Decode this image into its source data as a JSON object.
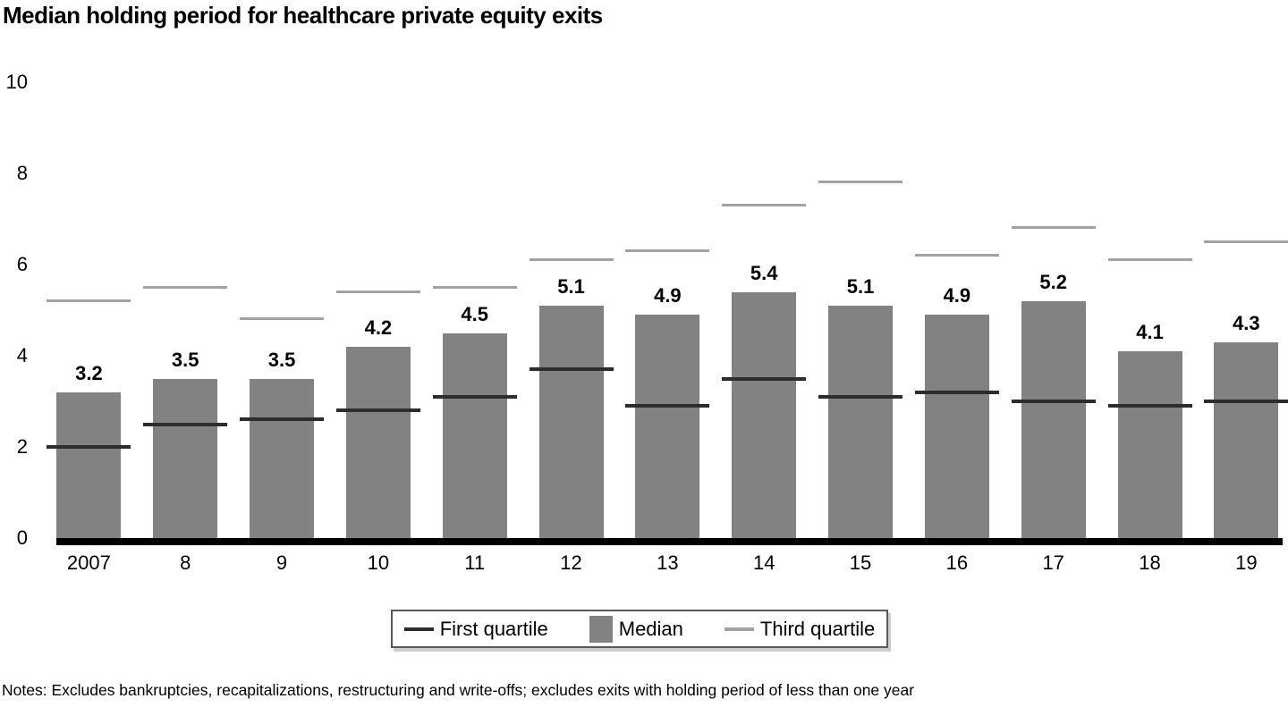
{
  "title": "Median holding period for healthcare private equity exits",
  "notes": "Notes: Excludes bankruptcies, recapitalizations, restructuring and write-offs; excludes exits with holding period of less than one year",
  "legend": {
    "items": [
      {
        "label": "First quartile",
        "swatch": "dark-line"
      },
      {
        "label": "Median",
        "swatch": "gray-rect"
      },
      {
        "label": "Third quartile",
        "swatch": "light-line"
      }
    ]
  },
  "colors": {
    "median_bar": "#828282",
    "first_quartile_line": "#2d2d2d",
    "third_quartile_line": "#a3a3a3",
    "axis": "#000000",
    "text": "#000000"
  },
  "chart_data": {
    "type": "bar",
    "title": "Median holding period for healthcare private equity exits",
    "xlabel": "",
    "ylabel": "",
    "ylim": [
      0,
      10
    ],
    "yticks": [
      0,
      2,
      4,
      6,
      8,
      10
    ],
    "grid": false,
    "legend_position": "bottom",
    "categories": [
      "2007",
      "8",
      "9",
      "10",
      "11",
      "12",
      "13",
      "14",
      "15",
      "16",
      "17",
      "18",
      "19"
    ],
    "series": [
      {
        "name": "First quartile",
        "mark": "tick-line",
        "values": [
          2.0,
          2.5,
          2.6,
          2.8,
          3.1,
          3.7,
          2.9,
          3.5,
          3.1,
          3.2,
          3.0,
          2.9,
          3.0
        ]
      },
      {
        "name": "Median",
        "mark": "bar",
        "data_labels": true,
        "values": [
          3.2,
          3.5,
          3.5,
          4.2,
          4.5,
          5.1,
          4.9,
          5.4,
          5.1,
          4.9,
          5.2,
          4.1,
          4.3
        ]
      },
      {
        "name": "Third quartile",
        "mark": "tick-line",
        "values": [
          5.2,
          5.5,
          4.8,
          5.4,
          5.5,
          6.1,
          6.3,
          7.3,
          7.8,
          6.2,
          6.8,
          6.1,
          6.5
        ]
      }
    ]
  }
}
